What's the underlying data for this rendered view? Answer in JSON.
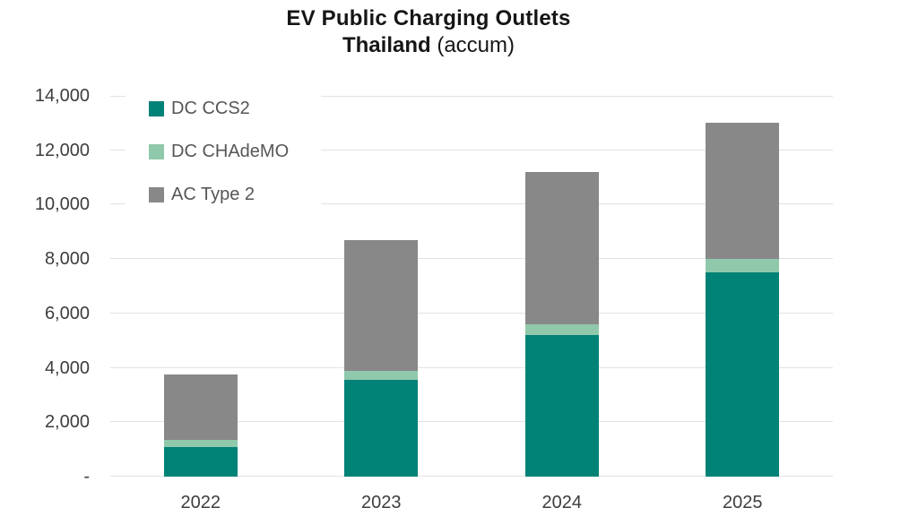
{
  "title": {
    "line1": "EV Public Charging Outlets",
    "line2_bold": "Thailand",
    "line2_suffix": " (accum)"
  },
  "legend": {
    "items": [
      {
        "label": "DC CCS2",
        "color": "#008276"
      },
      {
        "label": "DC CHAdeMO",
        "color": "#90C8AC"
      },
      {
        "label": "AC Type 2",
        "color": "#888888"
      }
    ]
  },
  "chart_data": {
    "type": "bar",
    "stacked": true,
    "title": "EV Public Charging Outlets Thailand (accum)",
    "categories": [
      "2022",
      "2023",
      "2024",
      "2025"
    ],
    "series": [
      {
        "name": "DC CCS2",
        "color": "#008276",
        "values": [
          1100,
          3550,
          5200,
          7500
        ]
      },
      {
        "name": "DC CHAdeMO",
        "color": "#90C8AC",
        "values": [
          250,
          350,
          400,
          500
        ]
      },
      {
        "name": "AC Type 2",
        "color": "#888888",
        "values": [
          2400,
          4800,
          5600,
          5000
        ]
      }
    ],
    "totals": [
      3750,
      8700,
      11200,
      13000
    ],
    "xlabel": "",
    "ylabel": "",
    "ylim": [
      0,
      14000
    ],
    "y_tick_interval": 2000,
    "y_ticks": [
      {
        "value": 0,
        "label": "-"
      },
      {
        "value": 2000,
        "label": "2,000"
      },
      {
        "value": 4000,
        "label": "4,000"
      },
      {
        "value": 6000,
        "label": "6,000"
      },
      {
        "value": 8000,
        "label": "8,000"
      },
      {
        "value": 10000,
        "label": "10,000"
      },
      {
        "value": 12000,
        "label": "12,000"
      },
      {
        "value": 14000,
        "label": "14,000"
      }
    ],
    "grid": true,
    "gridline_color": "#e2e2e2",
    "legend_position": "top-left-inside",
    "background_color": "#ffffff"
  }
}
